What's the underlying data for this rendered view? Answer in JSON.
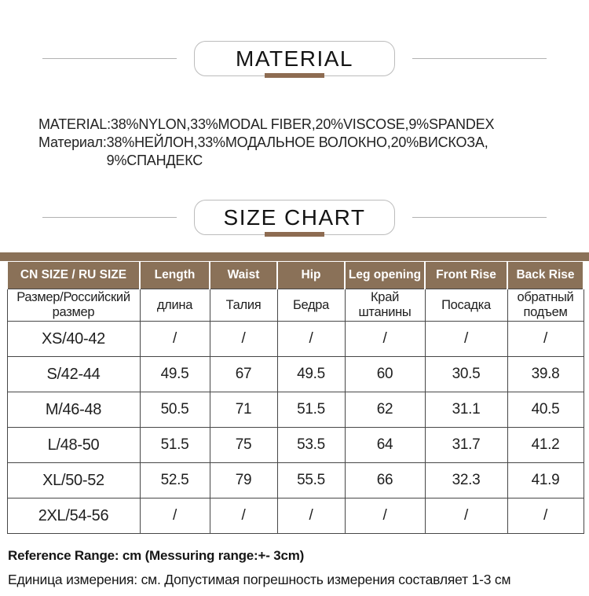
{
  "colors": {
    "brown_header": "#8a7158",
    "brown_accent_bar": "#8d6b51",
    "table_border": "#474747",
    "divider_line": "#b2b2b2"
  },
  "material": {
    "heading": "MATERIAL",
    "rows": [
      {
        "label": "MATERIAL:",
        "value": "38%NYLON,33%MODAL FIBER,20%VISCOSE,9%SPANDEX"
      },
      {
        "label": "Материал:",
        "value": "38%НЕЙЛОН,33%МОДАЛЬНОЕ ВОЛОКНО,20%ВИСКОЗА,\n9%СПАНДЕКС"
      }
    ]
  },
  "size_chart": {
    "heading": "SIZE CHART",
    "table": {
      "columns_en": [
        "CN SIZE / RU SIZE",
        "Length",
        "Waist",
        "Hip",
        "Leg opening",
        "Front Rise",
        "Back Rise"
      ],
      "columns_ru": [
        "Размер/Российский\nразмер",
        "длина",
        "Талия",
        "Бедра",
        "Край\nштанины",
        "Посадка",
        "обратный\nподъем"
      ],
      "rows": [
        {
          "size": "XS/40-42",
          "values": [
            "/",
            "/",
            "/",
            "/",
            "/",
            "/"
          ]
        },
        {
          "size": "S/42-44",
          "values": [
            "49.5",
            "67",
            "49.5",
            "60",
            "30.5",
            "39.8"
          ]
        },
        {
          "size": "M/46-48",
          "values": [
            "50.5",
            "71",
            "51.5",
            "62",
            "31.1",
            "40.5"
          ]
        },
        {
          "size": "L/48-50",
          "values": [
            "51.5",
            "75",
            "53.5",
            "64",
            "31.7",
            "41.2"
          ]
        },
        {
          "size": "XL/50-52",
          "values": [
            "52.5",
            "79",
            "55.5",
            "66",
            "32.3",
            "41.9"
          ]
        },
        {
          "size": "2XL/54-56",
          "values": [
            "/",
            "/",
            "/",
            "/",
            "/",
            "/"
          ]
        }
      ]
    }
  },
  "footer": {
    "reference_en": "Reference Range: cm (Messuring range:+- 3cm)",
    "reference_ru": "Единица измерения: см. Допустимая погрешность измерения составляет 1-3 см"
  }
}
